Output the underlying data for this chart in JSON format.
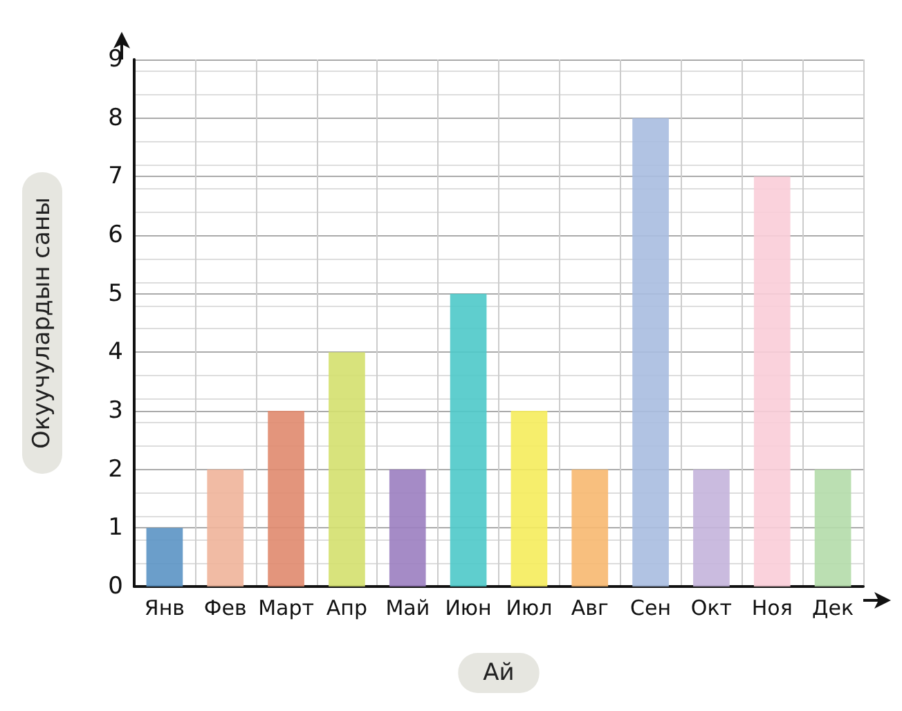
{
  "chart_data": {
    "type": "bar",
    "xlabel": "Ай",
    "ylabel": "Окуучулардын саны",
    "categories": [
      "Янв",
      "Фев",
      "Март",
      "Апр",
      "Май",
      "Июн",
      "Июл",
      "Авг",
      "Сен",
      "Окт",
      "Ноя",
      "Дек"
    ],
    "values": [
      1,
      2,
      3,
      4,
      2,
      5,
      3,
      2,
      8,
      2,
      7,
      2
    ],
    "colors": [
      "#5b93c4",
      "#f0b49a",
      "#e08a6e",
      "#d4e06e",
      "#9b7ec0",
      "#4ec9c9",
      "#f5ec5c",
      "#f7b870",
      "#a9bde0",
      "#c4b4dc",
      "#f9cdd8",
      "#b4dcaa"
    ],
    "ylim": [
      0,
      9
    ],
    "yticks": [
      0,
      1,
      2,
      3,
      4,
      5,
      6,
      7,
      8,
      9
    ],
    "grid": true
  }
}
